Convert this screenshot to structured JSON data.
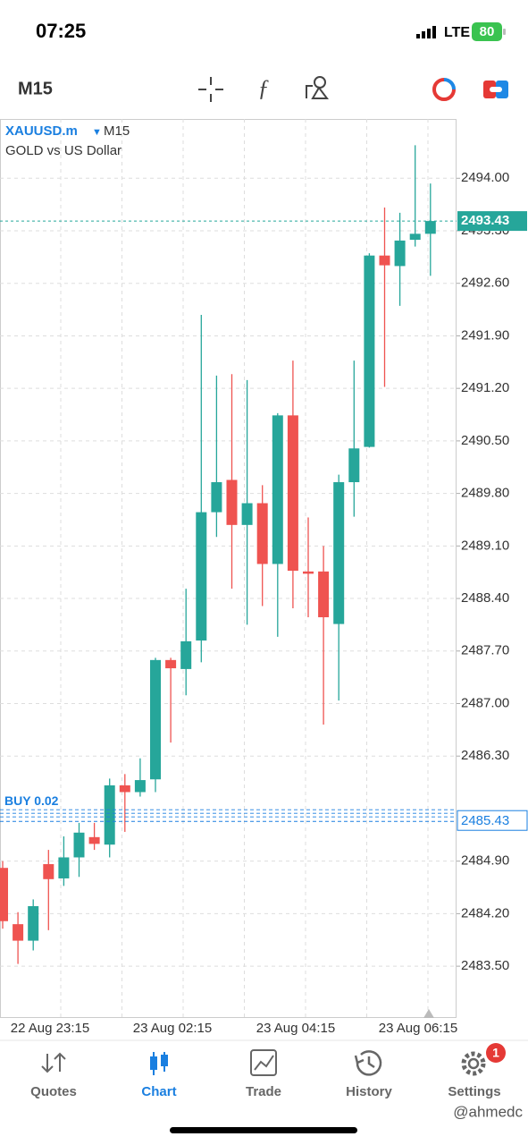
{
  "status_bar": {
    "time": "07:25",
    "network": "LTE",
    "battery": "80"
  },
  "toolbar": {
    "timeframe": "M15"
  },
  "chart_data": {
    "type": "candlestick",
    "symbol": "XAUUSD.m",
    "timeframe": "M15",
    "description": "GOLD vs US Dollar",
    "open": [
      2484.81,
      2484.06,
      2483.84,
      2484.86,
      2484.67,
      2484.95,
      2485.22,
      2485.12,
      2485.91,
      2485.82,
      2485.99,
      2487.58,
      2487.46,
      2487.84,
      2489.55,
      2489.98,
      2489.38,
      2489.67,
      2488.86,
      2490.84,
      2488.76,
      2488.76,
      2488.06,
      2489.95,
      2490.42,
      2492.97,
      2492.83,
      2493.18,
      2493.26
    ],
    "high": [
      2484.9,
      2484.22,
      2484.39,
      2485.05,
      2485.23,
      2485.41,
      2485.41,
      2486.0,
      2486.06,
      2486.27,
      2487.61,
      2487.61,
      2488.53,
      2492.18,
      2491.37,
      2491.39,
      2491.31,
      2489.91,
      2490.87,
      2491.57,
      2489.48,
      2489.1,
      2490.05,
      2491.57,
      2493.0,
      2493.61,
      2493.54,
      2494.44,
      2493.93
    ],
    "low": [
      2484.0,
      2483.53,
      2483.71,
      2483.98,
      2484.57,
      2484.69,
      2485.05,
      2484.95,
      2485.29,
      2485.76,
      2485.82,
      2486.48,
      2487.11,
      2487.55,
      2489.22,
      2488.53,
      2488.05,
      2488.3,
      2487.89,
      2488.27,
      2488.15,
      2486.72,
      2487.04,
      2489.49,
      2490.41,
      2491.22,
      2492.3,
      2493.09,
      2492.7
    ],
    "close": [
      2484.1,
      2483.84,
      2484.3,
      2484.66,
      2484.95,
      2485.28,
      2485.13,
      2485.91,
      2485.82,
      2485.98,
      2487.58,
      2487.47,
      2487.83,
      2489.55,
      2489.95,
      2489.38,
      2489.67,
      2488.86,
      2490.84,
      2488.77,
      2488.73,
      2488.15,
      2489.95,
      2490.4,
      2492.97,
      2492.84,
      2493.17,
      2493.26,
      2493.43
    ],
    "up_color": "#26a69a",
    "down_color": "#ef5350",
    "ylim": [
      2482.81,
      2494.79
    ],
    "yticks": [
      {
        "value": 2494.0,
        "label": "2494.00"
      },
      {
        "value": 2493.3,
        "label": "2493.30"
      },
      {
        "value": 2492.6,
        "label": "2492.60"
      },
      {
        "value": 2491.9,
        "label": "2491.90"
      },
      {
        "value": 2491.2,
        "label": "2491.20"
      },
      {
        "value": 2490.5,
        "label": "2490.50"
      },
      {
        "value": 2489.8,
        "label": "2489.80"
      },
      {
        "value": 2489.1,
        "label": "2489.10"
      },
      {
        "value": 2488.4,
        "label": "2488.40"
      },
      {
        "value": 2487.7,
        "label": "2487.70"
      },
      {
        "value": 2487.0,
        "label": "2487.00"
      },
      {
        "value": 2486.3,
        "label": "2486.30"
      },
      {
        "value": 2484.9,
        "label": "2484.90"
      },
      {
        "value": 2484.2,
        "label": "2484.20"
      },
      {
        "value": 2483.5,
        "label": "2483.50"
      }
    ],
    "current_price": {
      "value": 2493.43,
      "label": "2493.43"
    },
    "order_line": {
      "text": "BUY 0.02",
      "value": 2485.43,
      "label": "2485.43"
    },
    "x_labels": [
      "22 Aug 23:15",
      "23 Aug 02:15",
      "23 Aug 04:15",
      "23 Aug 06:15"
    ],
    "grid": true
  },
  "tab_bar": {
    "tabs": [
      "Quotes",
      "Chart",
      "Trade",
      "History",
      "Settings"
    ],
    "badge": "1"
  },
  "watermark": "@ahmedc"
}
